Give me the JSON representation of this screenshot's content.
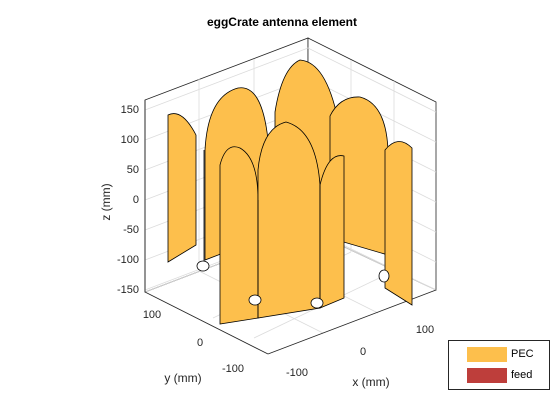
{
  "title": "eggCrate antenna element",
  "axes": {
    "xlabel": "x (mm)",
    "ylabel": "y (mm)",
    "zlabel": "z (mm)",
    "z_ticks": [
      "150",
      "100",
      "50",
      "0",
      "-50",
      "-100",
      "-150"
    ],
    "x_ticks": [
      "-100",
      "0",
      "100"
    ],
    "y_ticks": [
      "100",
      "0",
      "-100"
    ]
  },
  "legend": {
    "items": [
      {
        "label": "PEC",
        "color": "#fdbf4c"
      },
      {
        "label": "feed",
        "color": "#be3e3b"
      }
    ]
  },
  "colors": {
    "pec": "#fdbf4c",
    "feed": "#be3e3b",
    "axis": "#262626",
    "grid": "#dcdcdc"
  }
}
